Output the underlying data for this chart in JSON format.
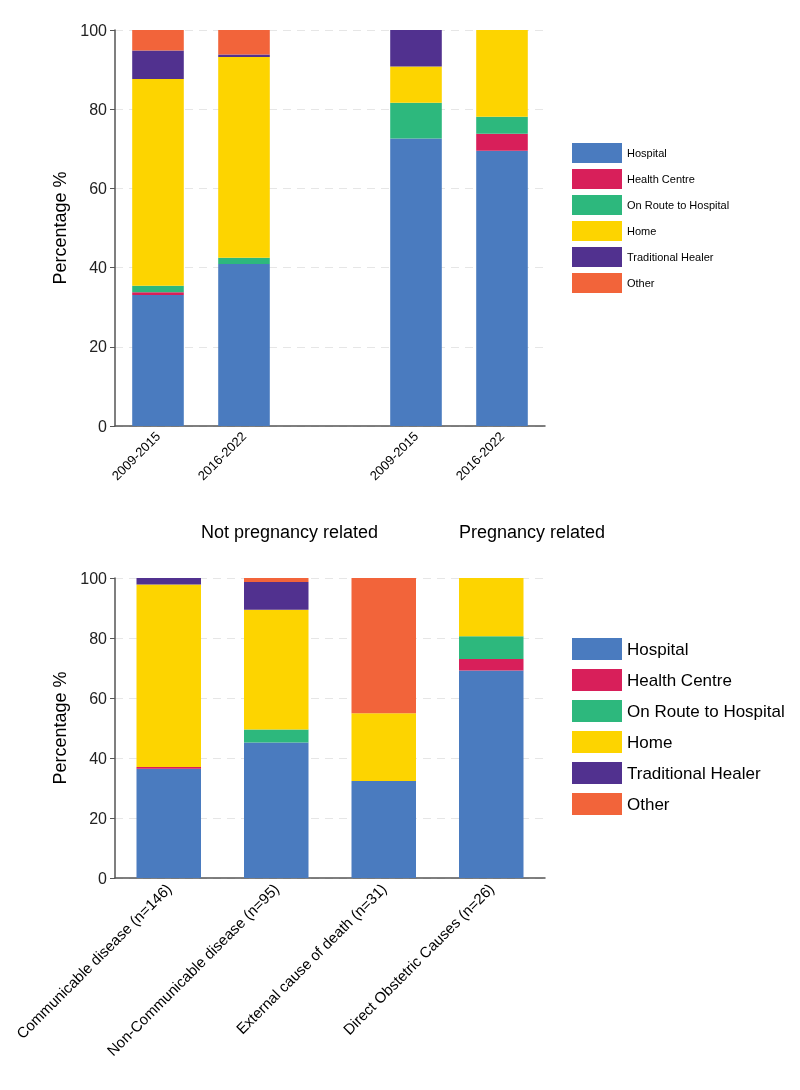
{
  "chart_data": [
    {
      "type": "bar",
      "stacked": true,
      "ylabel": "Percentage %",
      "categories": [
        "2009-2015",
        "2016-2022",
        null,
        "2009-2015",
        "2016-2022"
      ],
      "series": [
        {
          "name": "Hospital",
          "color": "#4a7bbf",
          "values": [
            33.1,
            40.9,
            null,
            72.6,
            69.5
          ]
        },
        {
          "name": "Health Centre",
          "color": "#d81f5a",
          "values": [
            0.7,
            0,
            null,
            0,
            4.3
          ]
        },
        {
          "name": "On Route to Hospital",
          "color": "#2db87d",
          "values": [
            1.6,
            1.6,
            null,
            9.0,
            4.3
          ]
        },
        {
          "name": "Home",
          "color": "#fdd400",
          "values": [
            52.2,
            50.7,
            null,
            9.2,
            21.9
          ]
        },
        {
          "name": "Traditional Healer",
          "color": "#51318f",
          "values": [
            7.2,
            0.6,
            null,
            9.2,
            0
          ]
        },
        {
          "name": "Other",
          "color": "#f2643a",
          "values": [
            5.2,
            6.2,
            null,
            0,
            0
          ]
        }
      ],
      "ylim": [
        0,
        100
      ],
      "yticks": [
        0,
        20,
        40,
        60,
        80,
        100
      ],
      "grid": "y",
      "legend": "right",
      "annotations": [
        "Not pregnancy related",
        "Pregnancy related"
      ]
    },
    {
      "type": "bar",
      "stacked": true,
      "ylabel": "Percentage %",
      "categories": [
        "Communicable disease (n=146)",
        "Non-Communicable disease (n=95)",
        "External cause of death (n=31)",
        "Direct Obstetric Causes (n=26)"
      ],
      "series": [
        {
          "name": "Hospital",
          "color": "#4a7bbf",
          "values": [
            36.4,
            45.2,
            32.3,
            69.2
          ]
        },
        {
          "name": "Health Centre",
          "color": "#d81f5a",
          "values": [
            0.6,
            0,
            0,
            3.8
          ]
        },
        {
          "name": "On Route to Hospital",
          "color": "#2db87d",
          "values": [
            0,
            4.3,
            0,
            7.6
          ]
        },
        {
          "name": "Home",
          "color": "#fdd400",
          "values": [
            60.8,
            39.9,
            22.6,
            19.4
          ]
        },
        {
          "name": "Traditional Healer",
          "color": "#51318f",
          "values": [
            2.2,
            9.3,
            0,
            0
          ]
        },
        {
          "name": "Other",
          "color": "#f2643a",
          "values": [
            0,
            1.3,
            45.1,
            0
          ]
        }
      ],
      "ylim": [
        0,
        100
      ],
      "yticks": [
        0,
        20,
        40,
        60,
        80,
        100
      ],
      "grid": "y",
      "legend": "right"
    }
  ]
}
